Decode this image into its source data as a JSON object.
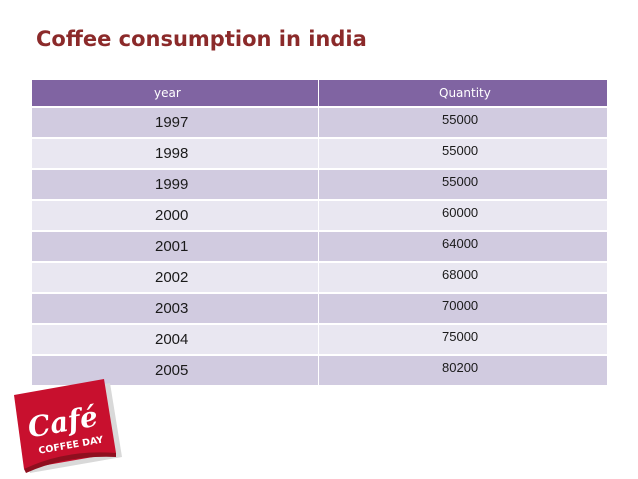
{
  "slide": {
    "title": "Coffee consumption in india"
  },
  "table": {
    "headers": {
      "year": "year",
      "quantity": "Quantity"
    },
    "rows": [
      {
        "year": "1997",
        "quantity": "55000"
      },
      {
        "year": "1998",
        "quantity": "55000"
      },
      {
        "year": "1999",
        "quantity": "55000"
      },
      {
        "year": "2000",
        "quantity": "60000"
      },
      {
        "year": "2001",
        "quantity": "64000"
      },
      {
        "year": "2002",
        "quantity": "68000"
      },
      {
        "year": "2003",
        "quantity": "70000"
      },
      {
        "year": "2004",
        "quantity": "75000"
      },
      {
        "year": "2005",
        "quantity": "80200"
      }
    ]
  },
  "logo": {
    "brand_script": "Café",
    "brand_name": "COFFEE DAY",
    "colors": {
      "red": "#c8102e",
      "dark_red": "#8f0f1f",
      "white": "#ffffff"
    }
  },
  "colors": {
    "title": "#8b2a2a",
    "header_bg": "#8064a2",
    "row_odd": "#d1cbe0",
    "row_even": "#e9e7f1"
  }
}
